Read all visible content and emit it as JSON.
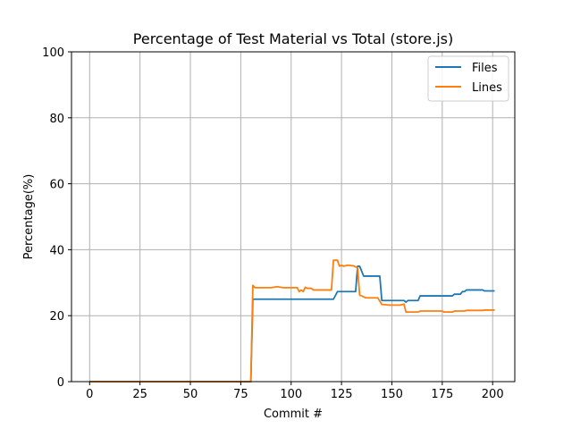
{
  "chart_data": {
    "type": "line",
    "title": "Percentage of Test Material vs Total (store.js)",
    "xlabel": "Commit #",
    "ylabel": "Percentage(%)",
    "xlim": [
      -9,
      211
    ],
    "ylim": [
      0,
      100
    ],
    "xticks": [
      0,
      25,
      50,
      75,
      100,
      125,
      150,
      175,
      200
    ],
    "yticks": [
      0,
      20,
      40,
      60,
      80,
      100
    ],
    "grid": true,
    "legend_position": "top-right",
    "series": [
      {
        "name": "Files",
        "color": "#1f77b4",
        "points": [
          [
            0,
            0
          ],
          [
            80,
            0
          ],
          [
            81,
            25
          ],
          [
            90,
            25
          ],
          [
            100,
            25
          ],
          [
            110,
            25
          ],
          [
            121,
            25
          ],
          [
            123,
            27.3
          ],
          [
            132,
            27.3
          ],
          [
            133,
            35
          ],
          [
            134,
            35
          ],
          [
            136,
            32
          ],
          [
            144,
            32
          ],
          [
            145,
            24.6
          ],
          [
            156,
            24.6
          ],
          [
            157,
            24.1
          ],
          [
            158,
            24.6
          ],
          [
            163,
            24.6
          ],
          [
            164,
            26
          ],
          [
            180,
            26
          ],
          [
            181,
            26.5
          ],
          [
            184,
            26.5
          ],
          [
            185,
            27.3
          ],
          [
            186,
            27.3
          ],
          [
            187,
            27.8
          ],
          [
            195,
            27.8
          ],
          [
            196,
            27.5
          ],
          [
            201,
            27.5
          ]
        ]
      },
      {
        "name": "Lines",
        "color": "#ff7f0e",
        "points": [
          [
            0,
            0
          ],
          [
            80,
            0
          ],
          [
            81,
            29.2
          ],
          [
            82,
            28.5
          ],
          [
            90,
            28.5
          ],
          [
            93,
            28.8
          ],
          [
            96,
            28.5
          ],
          [
            103,
            28.5
          ],
          [
            104,
            27.3
          ],
          [
            105,
            27.8
          ],
          [
            106,
            27.3
          ],
          [
            107,
            28.6
          ],
          [
            108,
            28.3
          ],
          [
            110,
            28.3
          ],
          [
            111,
            27.8
          ],
          [
            120,
            27.8
          ],
          [
            121,
            36.8
          ],
          [
            123,
            36.8
          ],
          [
            124,
            35
          ],
          [
            125,
            35.3
          ],
          [
            126,
            35
          ],
          [
            128,
            35.3
          ],
          [
            131,
            35.1
          ],
          [
            133,
            34.5
          ],
          [
            134,
            26.2
          ],
          [
            135,
            26
          ],
          [
            137,
            25.4
          ],
          [
            143,
            25.4
          ],
          [
            145,
            23.4
          ],
          [
            149,
            23.2
          ],
          [
            154,
            23.2
          ],
          [
            156,
            23.5
          ],
          [
            157,
            21.1
          ],
          [
            158,
            21.1
          ],
          [
            163,
            21.1
          ],
          [
            164,
            21.4
          ],
          [
            175,
            21.4
          ],
          [
            176,
            21.1
          ],
          [
            180,
            21.1
          ],
          [
            181,
            21.4
          ],
          [
            186,
            21.4
          ],
          [
            187,
            21.6
          ],
          [
            195,
            21.6
          ],
          [
            196,
            21.7
          ],
          [
            201,
            21.7
          ]
        ]
      }
    ]
  }
}
